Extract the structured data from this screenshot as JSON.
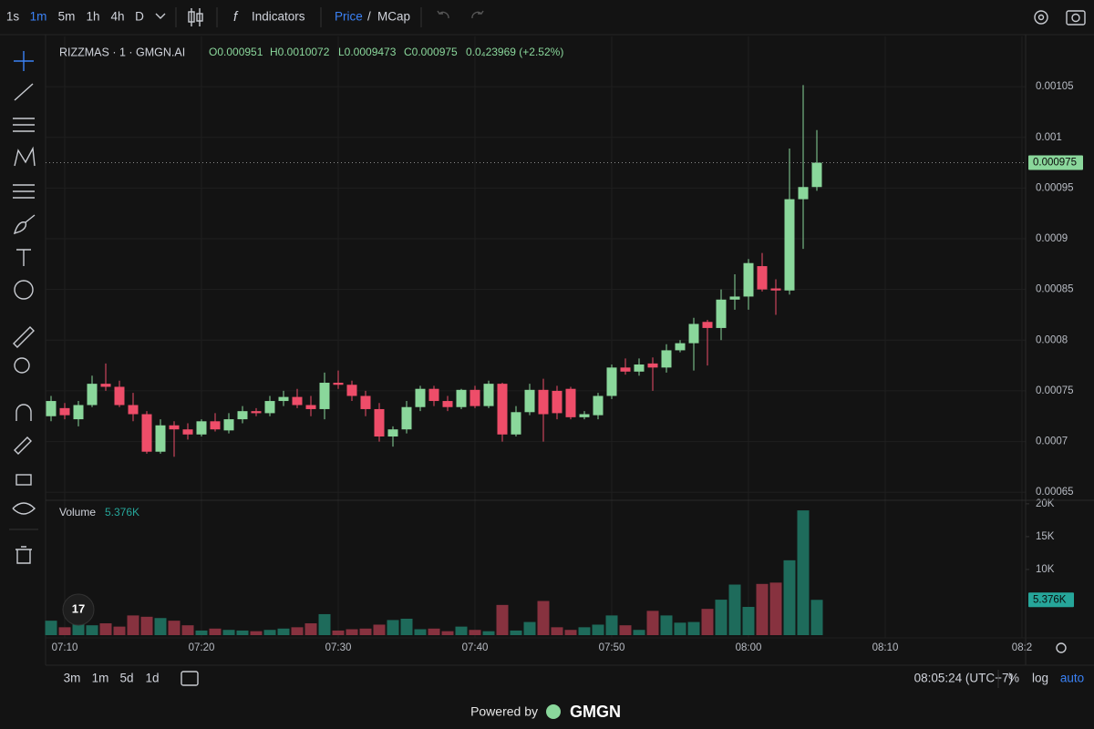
{
  "chart_data": [
    {
      "type": "candlestick",
      "legend": {
        "symbol": "RIZZMAS · 1 · GMGN.AI",
        "open": "O0.000951",
        "high": "H0.0010072",
        "low": "L0.0009473",
        "close": "C0.000975",
        "change": "0.0₄23969 (+2.52%)"
      },
      "categories": [
        null,
        "07:10",
        null,
        null,
        null,
        null,
        null,
        null,
        null,
        null,
        null,
        "07:20",
        null,
        null,
        null,
        null,
        null,
        null,
        null,
        null,
        null,
        "07:30",
        null,
        null,
        null,
        null,
        null,
        null,
        null,
        null,
        null,
        "07:40",
        null,
        null,
        null,
        null,
        null,
        null,
        null,
        null,
        null,
        "07:50",
        null,
        null,
        null,
        null,
        null,
        null,
        null,
        null,
        null,
        "08:00",
        null,
        null,
        null,
        null,
        null,
        null,
        null,
        null,
        null,
        "08:10",
        null,
        null,
        null,
        null,
        null,
        null,
        null,
        null,
        null,
        "08:2"
      ],
      "open": [
        0.000725,
        0.000733,
        0.000722,
        0.000736,
        0.000757,
        0.000754,
        0.000736,
        0.000727,
        0.00069,
        0.000716,
        0.000712,
        0.000707,
        0.00072,
        0.000711,
        0.000722,
        0.00073,
        0.000728,
        0.00074,
        0.000744,
        0.000736,
        0.000732,
        0.000758,
        0.000756,
        0.000745,
        0.000732,
        0.000705,
        0.000712,
        0.000734,
        0.000752,
        0.00074,
        0.000734,
        0.000751,
        0.000735,
        0.000757,
        0.000707,
        0.000729,
        0.000751,
        0.00075,
        0.000752,
        0.000724,
        0.000726,
        0.000745,
        0.000773,
        0.000769,
        0.000777,
        0.000773,
        0.00079,
        0.000797,
        0.000818,
        0.000812,
        0.00084,
        0.000843,
        0.000873,
        0.000851,
        0.000849,
        0.000939,
        0.000951,
        null,
        null,
        null,
        null,
        null,
        null,
        null,
        null,
        null,
        null,
        null,
        null,
        null,
        null,
        null
      ],
      "high": [
        0.000745,
        0.000738,
        0.00074,
        0.000765,
        0.000777,
        0.00076,
        0.000748,
        0.00073,
        0.000722,
        0.00072,
        0.000718,
        0.000722,
        0.000728,
        0.000728,
        0.000735,
        0.000733,
        0.000745,
        0.00075,
        0.000752,
        0.000745,
        0.000768,
        0.00077,
        0.00076,
        0.00075,
        0.000738,
        0.000715,
        0.00074,
        0.000755,
        0.000755,
        0.000745,
        0.000752,
        0.000755,
        0.00076,
        0.000758,
        0.000735,
        0.000757,
        0.000762,
        0.000755,
        0.000754,
        0.00073,
        0.000748,
        0.000776,
        0.000782,
        0.000782,
        0.000783,
        0.000796,
        0.0008,
        0.000822,
        0.00082,
        0.00085,
        0.000865,
        0.00088,
        0.000886,
        0.00086,
        0.000989,
        0.0010515,
        0.0010072,
        null,
        null,
        null,
        null,
        null,
        null,
        null,
        null,
        null,
        null,
        null,
        null,
        null,
        null,
        null
      ],
      "low": [
        0.00072,
        0.000722,
        0.000715,
        0.000734,
        0.00075,
        0.000734,
        0.00072,
        0.000688,
        0.000688,
        0.000685,
        0.000702,
        0.000705,
        0.00071,
        0.000708,
        0.000718,
        0.000725,
        0.000725,
        0.000735,
        0.000733,
        0.000725,
        0.000722,
        0.000752,
        0.00074,
        0.000725,
        0.0007,
        0.000695,
        0.000708,
        0.00073,
        0.000735,
        0.00073,
        0.000732,
        0.000733,
        0.000733,
        0.0007,
        0.000705,
        0.000726,
        0.0007,
        0.000722,
        0.000722,
        0.000722,
        0.000722,
        0.000742,
        0.000766,
        0.000765,
        0.00075,
        0.000768,
        0.000788,
        0.00077,
        0.000775,
        0.0008,
        0.00083,
        0.00083,
        0.000848,
        0.000825,
        0.000845,
        0.00089,
        0.0009473,
        null,
        null,
        null,
        null,
        null,
        null,
        null,
        null,
        null,
        null,
        null,
        null,
        null,
        null,
        null
      ],
      "close": [
        0.00074,
        0.000726,
        0.000736,
        0.000757,
        0.000754,
        0.000736,
        0.000727,
        0.00069,
        0.000716,
        0.000712,
        0.000707,
        0.00072,
        0.000712,
        0.000722,
        0.00073,
        0.000728,
        0.00074,
        0.000744,
        0.000736,
        0.000732,
        0.000758,
        0.000756,
        0.000745,
        0.000732,
        0.000705,
        0.000712,
        0.000734,
        0.000752,
        0.00074,
        0.000734,
        0.000751,
        0.000735,
        0.000757,
        0.000707,
        0.000729,
        0.000751,
        0.000727,
        0.000728,
        0.000724,
        0.000727,
        0.000745,
        0.000773,
        0.000769,
        0.000776,
        0.000773,
        0.00079,
        0.000797,
        0.000816,
        0.000812,
        0.00084,
        0.000843,
        0.000876,
        0.00085,
        0.000849,
        0.000939,
        0.000951,
        0.000975,
        null,
        null,
        null,
        null,
        null,
        null,
        null,
        null,
        null,
        null,
        null,
        null,
        null,
        null,
        null
      ],
      "up_color": "#8ad79b",
      "down_color": "#ee4d69",
      "last_price": 0.000975,
      "ylim": [
        0.000643,
        0.001095
      ],
      "yticks": [
        0.00105,
        0.001,
        0.00095,
        0.0009,
        0.00085,
        0.0008,
        0.00075,
        0.0007,
        0.00065
      ],
      "grid": true
    },
    {
      "type": "bar",
      "name": "Volume",
      "values": [
        2200,
        1200,
        2000,
        1500,
        1800,
        1300,
        3000,
        2800,
        2600,
        2200,
        1500,
        700,
        1000,
        800,
        700,
        600,
        800,
        1000,
        1200,
        1800,
        3200,
        700,
        900,
        1000,
        1600,
        2300,
        2500,
        900,
        1000,
        600,
        1300,
        800,
        600,
        4600,
        700,
        2000,
        5200,
        1200,
        800,
        1200,
        1600,
        3000,
        1500,
        800,
        3700,
        3000,
        1900,
        2000,
        4000,
        5400,
        7700,
        4300,
        7800,
        8000,
        11400,
        19000,
        5376,
        null,
        null,
        null,
        null,
        null,
        null,
        null,
        null,
        null,
        null,
        null,
        null,
        null,
        null,
        null
      ],
      "current": {
        "value": 5376,
        "label": "5.376K"
      },
      "up_color": "#1e6b5b",
      "down_color": "#87323f",
      "ylim": [
        0,
        20400
      ],
      "yticks": [
        {
          "value": 20000,
          "label": "20K"
        },
        {
          "value": 15000,
          "label": "15K"
        },
        {
          "value": 10000,
          "label": "10K"
        }
      ]
    }
  ],
  "toolbar": {
    "intervals": [
      "1s",
      "1m",
      "5m",
      "1h",
      "4h",
      "D"
    ],
    "indicators": "Indicators",
    "price": "Price",
    "separator": "/",
    "mcap": "MCap"
  },
  "bottom_bar": {
    "ranges": [
      "3m",
      "1m",
      "5d",
      "1d"
    ],
    "clock": "08:05:24 (UTC+7)",
    "percent": "%",
    "log": "log",
    "auto": "auto"
  },
  "footer": {
    "powered": "Powered by",
    "brand": "GMGN"
  }
}
